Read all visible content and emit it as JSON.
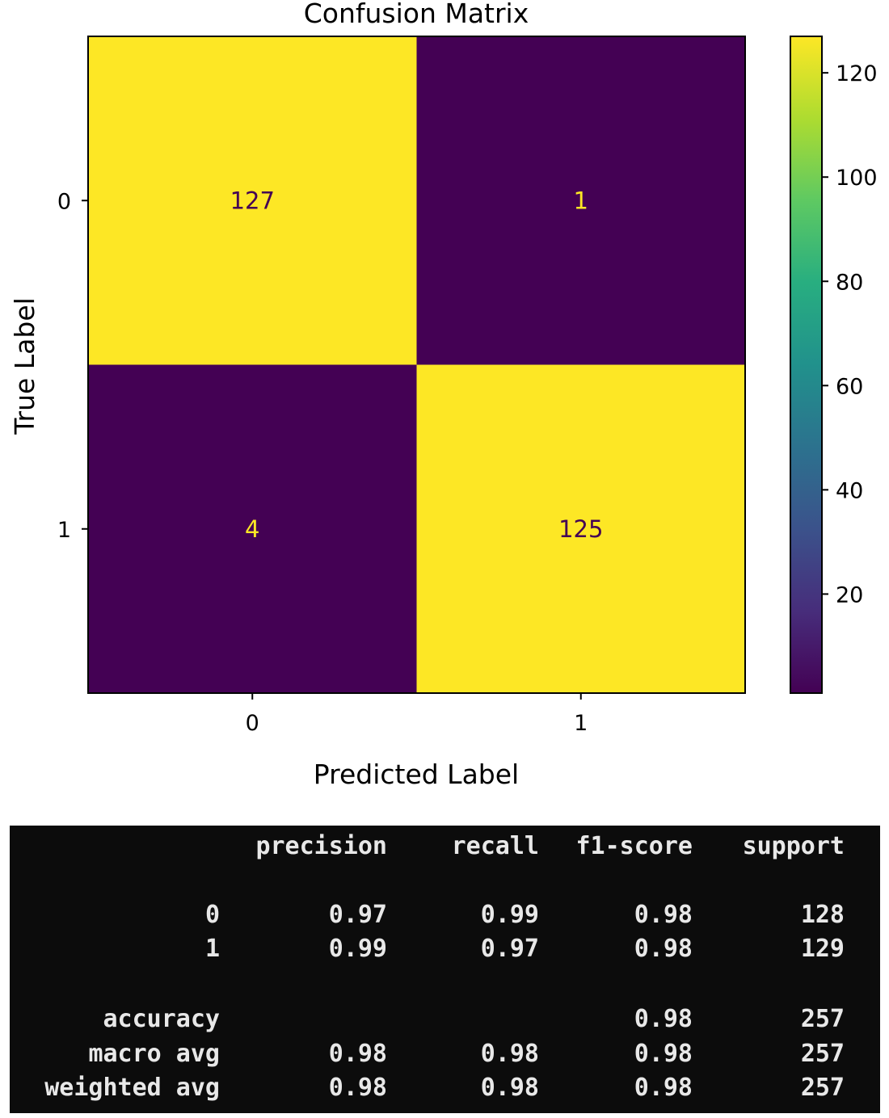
{
  "chart_data": {
    "type": "heatmap",
    "title": "Confusion Matrix",
    "xlabel": "Predicted Label",
    "ylabel": "True Label",
    "x_categories": [
      "0",
      "1"
    ],
    "y_categories": [
      "0",
      "1"
    ],
    "matrix": [
      [
        127,
        1
      ],
      [
        4,
        125
      ]
    ],
    "colormap": "viridis",
    "colorbar": {
      "range": [
        1,
        127
      ],
      "ticks": [
        20,
        40,
        60,
        80,
        100,
        120
      ]
    },
    "colors": {
      "high": "#fde725",
      "low": "#440154",
      "text_on_low": "#fde725",
      "text_on_high": "#440154"
    }
  },
  "report": {
    "headers": [
      "",
      "precision",
      "recall",
      "f1-score",
      "support"
    ],
    "rows": [
      [
        "0",
        "0.97",
        "0.99",
        "0.98",
        "128"
      ],
      [
        "1",
        "0.99",
        "0.97",
        "0.98",
        "129"
      ],
      [
        "accuracy",
        "",
        "",
        "0.98",
        "257"
      ],
      [
        "macro avg",
        "0.98",
        "0.98",
        "0.98",
        "257"
      ],
      [
        "weighted avg",
        "0.98",
        "0.98",
        "0.98",
        "257"
      ]
    ]
  }
}
